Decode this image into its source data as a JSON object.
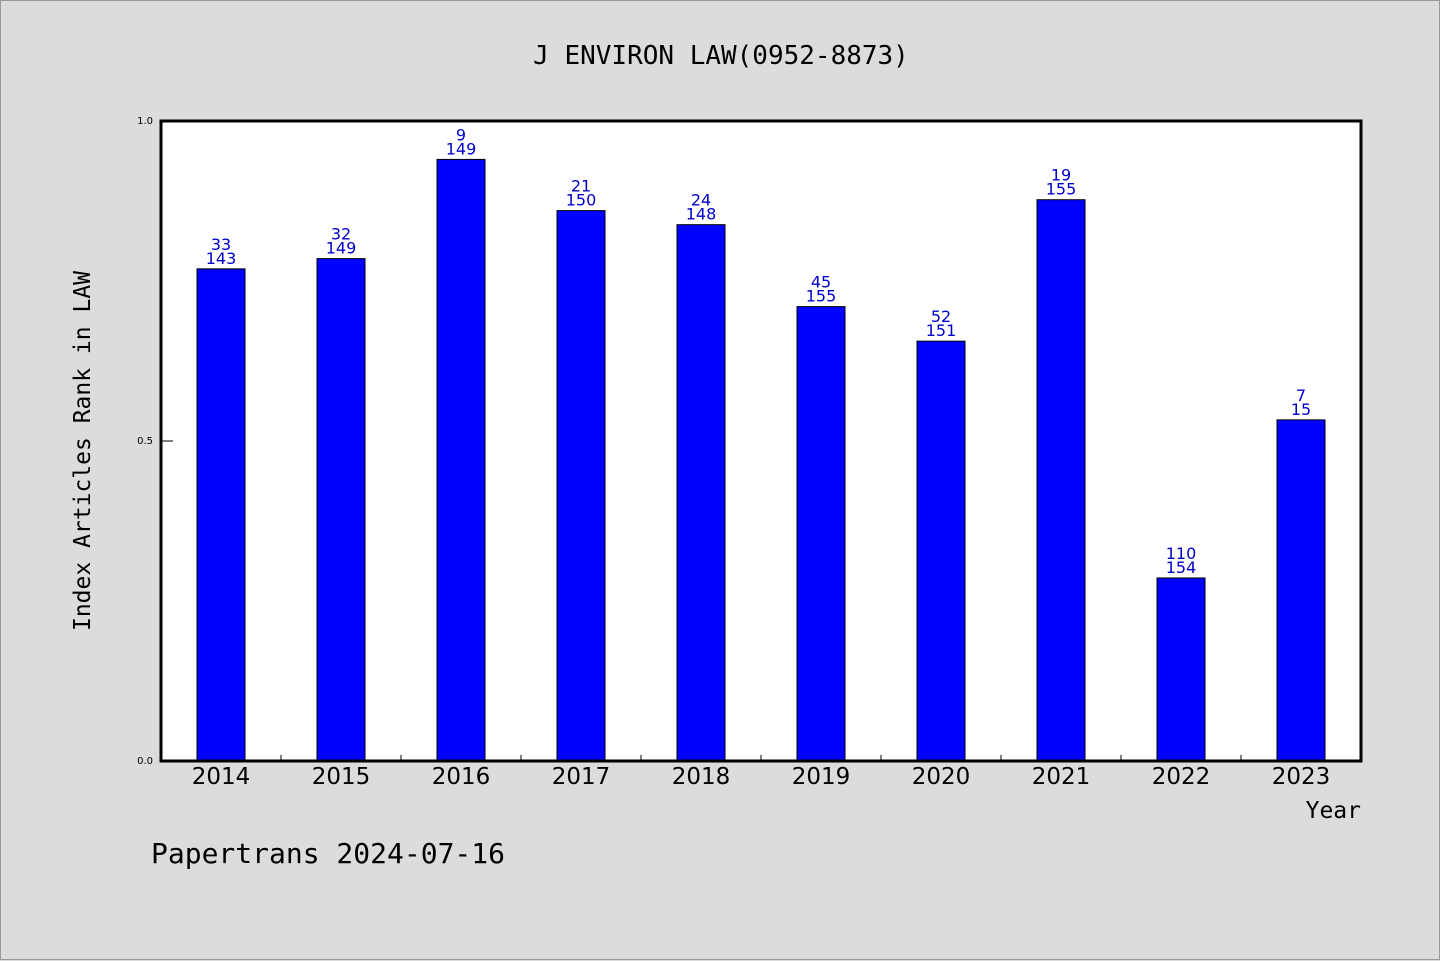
{
  "chart_data": {
    "type": "bar",
    "title": "J ENVIRON LAW(0952-8873)",
    "ylabel": "Index Articles Rank in LAW",
    "xlabel": "Year",
    "ylim": [
      0,
      1.0
    ],
    "yticks": [
      "0.0",
      "0.5",
      "1.0"
    ],
    "categories": [
      "2014",
      "2015",
      "2016",
      "2017",
      "2018",
      "2019",
      "2020",
      "2021",
      "2022",
      "2023"
    ],
    "values": [
      0.769,
      0.785,
      0.94,
      0.86,
      0.838,
      0.71,
      0.656,
      0.877,
      0.286,
      0.533
    ],
    "rank": [
      "33",
      "32",
      "9",
      "21",
      "24",
      "45",
      "52",
      "19",
      "110",
      "7"
    ],
    "total": [
      "143",
      "149",
      "149",
      "150",
      "148",
      "155",
      "151",
      "155",
      "154",
      "15"
    ],
    "bar_color": "#0000ff",
    "label_color": "#0000cc",
    "grid": false
  },
  "footer": "Papertrans 2024-07-16"
}
